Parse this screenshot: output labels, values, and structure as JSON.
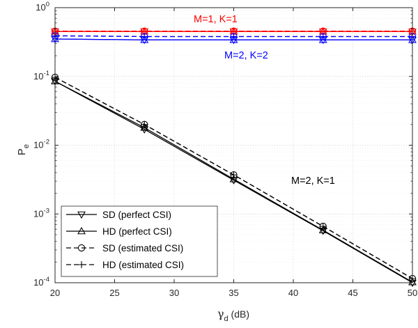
{
  "chart_data": {
    "type": "line",
    "title": "",
    "xlabel": {
      "symbol": "γ",
      "subscript": "d",
      "unit": " (dB)"
    },
    "ylabel": {
      "symbol": "P",
      "subscript": "e"
    },
    "xlim": [
      20,
      50
    ],
    "ylim": [
      0.0001,
      1
    ],
    "yscale": "log",
    "grid": true,
    "legend_position": "bottom-left",
    "x_ticks": [
      "20",
      "25",
      "30",
      "35",
      "40",
      "45",
      "50"
    ],
    "y_ticks": [
      {
        "base": "10",
        "exp": "-4"
      },
      {
        "base": "10",
        "exp": "-3"
      },
      {
        "base": "10",
        "exp": "-2"
      },
      {
        "base": "10",
        "exp": "-1"
      },
      {
        "base": "10",
        "exp": "0"
      }
    ],
    "x": [
      20,
      27.5,
      35,
      42.5,
      50
    ],
    "groups": [
      {
        "label": "M=1, K=1",
        "color": "#ff0000",
        "series": [
          {
            "name": "SD (perfect CSI)",
            "style": "solid",
            "marker": "triangle-down",
            "values": [
              0.45,
              0.45,
              0.45,
              0.45,
              0.45
            ]
          },
          {
            "name": "HD (perfect CSI)",
            "style": "solid",
            "marker": "triangle-up",
            "values": [
              0.45,
              0.45,
              0.45,
              0.45,
              0.45
            ]
          },
          {
            "name": "SD (estimated CSI)",
            "style": "dashed",
            "marker": "circle",
            "values": [
              0.455,
              0.455,
              0.455,
              0.455,
              0.455
            ]
          },
          {
            "name": "HD (estimated CSI)",
            "style": "dashed",
            "marker": "plus",
            "values": [
              0.455,
              0.455,
              0.455,
              0.455,
              0.455
            ]
          }
        ]
      },
      {
        "label": "M=2, K=2",
        "color": "#0000ff",
        "series": [
          {
            "name": "SD (perfect CSI)",
            "style": "solid",
            "marker": "triangle-down",
            "values": [
              0.35,
              0.34,
              0.34,
              0.34,
              0.34
            ]
          },
          {
            "name": "HD (perfect CSI)",
            "style": "solid",
            "marker": "triangle-up",
            "values": [
              0.35,
              0.34,
              0.34,
              0.34,
              0.34
            ]
          },
          {
            "name": "SD (estimated CSI)",
            "style": "dashed",
            "marker": "circle",
            "values": [
              0.39,
              0.38,
              0.38,
              0.38,
              0.38
            ]
          },
          {
            "name": "HD (estimated CSI)",
            "style": "dashed",
            "marker": "plus",
            "values": [
              0.39,
              0.38,
              0.38,
              0.38,
              0.38
            ]
          }
        ]
      },
      {
        "label": "M=2, K=1",
        "color": "#000000",
        "series": [
          {
            "name": "SD (perfect CSI)",
            "style": "solid",
            "marker": "triangle-down",
            "values": [
              0.085,
              0.017,
              0.0031,
              0.00057,
              0.0001
            ]
          },
          {
            "name": "HD (perfect CSI)",
            "style": "solid",
            "marker": "triangle-up",
            "values": [
              0.085,
              0.018,
              0.0032,
              0.00058,
              0.000102
            ]
          },
          {
            "name": "SD (estimated CSI)",
            "style": "dashed",
            "marker": "circle",
            "values": [
              0.097,
              0.02,
              0.0037,
              0.00066,
              0.000115
            ]
          },
          {
            "name": "HD (estimated CSI)",
            "style": "dashed",
            "marker": "plus",
            "values": [
              0.097,
              0.02,
              0.0037,
              0.00066,
              0.000115
            ]
          }
        ]
      }
    ],
    "legend": [
      {
        "label": "SD (perfect CSI)",
        "style": "solid",
        "marker": "triangle-down"
      },
      {
        "label": "HD (perfect CSI)",
        "style": "solid",
        "marker": "triangle-up"
      },
      {
        "label": "SD (estimated CSI)",
        "style": "dashed",
        "marker": "circle"
      },
      {
        "label": "HD (estimated CSI)",
        "style": "dashed",
        "marker": "plus"
      }
    ]
  }
}
